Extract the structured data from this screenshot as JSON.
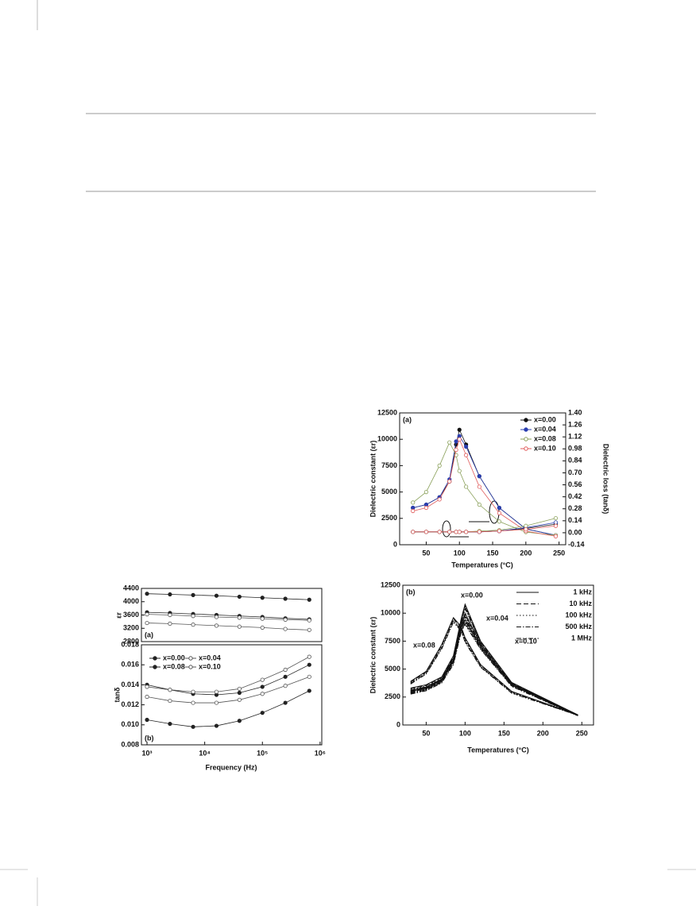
{
  "chart_data": [
    {
      "type": "line",
      "panel_label": "(a)",
      "ylabel": "εr",
      "log_x": true,
      "xlim": [
        800,
        1070000
      ],
      "ylim": [
        2800,
        4400
      ],
      "yticks": [
        2800,
        3200,
        3600,
        4000,
        4400
      ],
      "x": [
        1000,
        2500,
        6300,
        16000,
        40000,
        100000,
        250000,
        650000
      ],
      "series": [
        {
          "color": "#222222",
          "marker": "filled",
          "values": [
            4240,
            4220,
            4200,
            4180,
            4150,
            4120,
            4090,
            4060
          ]
        },
        {
          "color": "#222222",
          "marker": "filled",
          "values": [
            3680,
            3660,
            3630,
            3600,
            3570,
            3540,
            3500,
            3470
          ]
        },
        {
          "color": "#555555",
          "marker": "open",
          "values": [
            3620,
            3600,
            3570,
            3540,
            3520,
            3490,
            3460,
            3440
          ]
        },
        {
          "color": "#555555",
          "marker": "open",
          "values": [
            3360,
            3340,
            3310,
            3280,
            3250,
            3220,
            3180,
            3150
          ]
        }
      ]
    },
    {
      "type": "line",
      "panel_label": "(b)",
      "ylabel": "tanδ",
      "xlabel": "Frequency (Hz)",
      "log_x": true,
      "xlim": [
        800,
        1070000
      ],
      "ylim": [
        0.008,
        0.018
      ],
      "yticks": [
        {
          "value": 0.008,
          "label": "0.008"
        },
        {
          "value": 0.01,
          "label": "0.010"
        },
        {
          "value": 0.012,
          "label": "0.012"
        },
        {
          "value": 0.014,
          "label": "0.014"
        },
        {
          "value": 0.016,
          "label": "0.016"
        },
        {
          "value": 0.018,
          "label": "0.018"
        }
      ],
      "xticks": [
        {
          "value": 1000,
          "label": "10³"
        },
        {
          "value": 10000,
          "label": "10⁴"
        },
        {
          "value": 100000,
          "label": "10⁵"
        },
        {
          "value": 1000000,
          "label": "10⁶"
        }
      ],
      "x": [
        1000,
        2500,
        6300,
        16000,
        40000,
        100000,
        250000,
        650000
      ],
      "series": [
        {
          "name": "x=0.00",
          "color": "#222222",
          "marker": "filled",
          "values": [
            0.014,
            0.0135,
            0.0131,
            0.013,
            0.0132,
            0.0138,
            0.0148,
            0.016
          ]
        },
        {
          "name": "x=0.04",
          "color": "#555555",
          "marker": "open",
          "values": [
            0.0138,
            0.0135,
            0.0133,
            0.0133,
            0.0136,
            0.0145,
            0.0155,
            0.0168
          ]
        },
        {
          "name": "x=0.08",
          "color": "#222222",
          "marker": "filled",
          "values": [
            0.0105,
            0.0101,
            0.0098,
            0.0099,
            0.0104,
            0.0112,
            0.0122,
            0.0134
          ]
        },
        {
          "name": "x=0.10",
          "color": "#555555",
          "marker": "open",
          "values": [
            0.0128,
            0.0124,
            0.0122,
            0.0122,
            0.0125,
            0.0131,
            0.0139,
            0.0148
          ]
        }
      ]
    },
    {
      "type": "line",
      "panel_label": "(a)",
      "ylabel": "Dielectric constant (εr)",
      "y2label": "Dielectric loss (tanδ)",
      "xlabel": "Temperatures (°C)",
      "xlim": [
        10,
        260
      ],
      "ylim": [
        0,
        12500
      ],
      "y2lim": [
        -0.14,
        1.4
      ],
      "xticks": [
        50,
        100,
        150,
        200,
        250
      ],
      "yticks": [
        0,
        2500,
        5000,
        7500,
        10000,
        12500
      ],
      "y2ticks": [
        -0.14,
        {
          "value": 0,
          "label": "0.00"
        },
        0.14,
        0.28,
        0.42,
        0.56,
        {
          "value": 0.7,
          "label": "0.70"
        },
        0.84,
        0.98,
        1.12,
        1.26,
        {
          "value": 1.4,
          "label": "1.40"
        }
      ],
      "x": [
        30,
        50,
        70,
        85,
        95,
        100,
        110,
        130,
        160,
        200,
        245
      ],
      "series": [
        {
          "name": "x=0.00",
          "color": "#111111",
          "marker": "filled",
          "values": [
            3500,
            3800,
            4500,
            6000,
            9500,
            10900,
            9500,
            6500,
            3500,
            1500,
            900
          ]
        },
        {
          "name": "x=0.04",
          "color": "#2b3fb0",
          "marker": "filled",
          "values": [
            3500,
            3800,
            4500,
            6200,
            9800,
            10300,
            9300,
            6500,
            3500,
            1500,
            900
          ]
        },
        {
          "name": "x=0.08",
          "color": "#8aa05a",
          "marker": "open",
          "values": [
            4000,
            5000,
            7500,
            9700,
            8500,
            7000,
            5500,
            3800,
            2200,
            1200,
            900
          ]
        },
        {
          "name": "x=0.10",
          "color": "#e05a5a",
          "marker": "open",
          "values": [
            3200,
            3500,
            4300,
            6000,
            9000,
            10000,
            8500,
            5500,
            3000,
            1300,
            800
          ]
        },
        {
          "axis": "y2",
          "color": "#111111",
          "marker": "open",
          "values": [
            0.01,
            0.01,
            0.01,
            0.01,
            0.01,
            0.01,
            0.01,
            0.01,
            0.02,
            0.05,
            0.1
          ]
        },
        {
          "axis": "y2",
          "color": "#2b3fb0",
          "marker": "open",
          "values": [
            0.01,
            0.01,
            0.01,
            0.01,
            0.01,
            0.01,
            0.01,
            0.01,
            0.02,
            0.06,
            0.12
          ]
        },
        {
          "axis": "y2",
          "color": "#8aa05a",
          "marker": "open",
          "values": [
            0.01,
            0.01,
            0.01,
            0.01,
            0.01,
            0.01,
            0.01,
            0.02,
            0.03,
            0.08,
            0.17
          ]
        },
        {
          "axis": "y2",
          "color": "#e05a5a",
          "marker": "open",
          "values": [
            0.01,
            0.01,
            0.01,
            0.01,
            0.01,
            0.01,
            0.01,
            0.01,
            0.02,
            0.04,
            0.08
          ]
        }
      ]
    },
    {
      "type": "multiline",
      "panel_label": "(b)",
      "ylabel": "Dielectric constant (εr)",
      "xlabel": "Temperatures (°C)",
      "xlim": [
        20,
        265
      ],
      "ylim": [
        0,
        12500
      ],
      "xticks": [
        50,
        100,
        150,
        200,
        250
      ],
      "yticks": [
        0,
        2500,
        5000,
        7500,
        10000,
        12500
      ],
      "annotations": [
        "x=0.00",
        "x=0.04",
        "x=0.08",
        "x=0.10"
      ],
      "x": [
        30,
        50,
        70,
        85,
        95,
        100,
        120,
        160,
        245
      ],
      "series": [
        {
          "name": "1 kHz",
          "dash": "solid",
          "curves": [
            [
              3300,
              3600,
              4300,
              6200,
              9500,
              10800,
              7500,
              3800,
              900
            ],
            [
              3100,
              3400,
              4100,
              6000,
              9000,
              10000,
              7200,
              3700,
              900
            ],
            [
              3900,
              4800,
              7200,
              9600,
              8800,
              7800,
              5400,
              3000,
              900
            ],
            [
              3000,
              3300,
              4000,
              5800,
              8700,
              9400,
              7000,
              3600,
              850
            ]
          ]
        },
        {
          "name": "10 kHz",
          "dash": "dashed",
          "curves": [
            [
              3240,
              3540,
              4240,
              6100,
              9400,
              10700,
              7440,
              3760,
              890
            ],
            [
              3040,
              3340,
              4040,
              5900,
              8900,
              9900,
              7140,
              3660,
              890
            ],
            [
              3840,
              4740,
              7100,
              9500,
              8700,
              7700,
              5340,
              2960,
              890
            ],
            [
              2940,
              3240,
              3940,
              5700,
              8600,
              9300,
              6940,
              3560,
              840
            ]
          ]
        },
        {
          "name": "100 kHz",
          "dash": "dotted",
          "curves": [
            [
              3180,
              3480,
              4180,
              6000,
              9300,
              10600,
              7380,
              3720,
              880
            ],
            [
              2980,
              3280,
              3980,
              5800,
              8800,
              9800,
              7080,
              3620,
              880
            ],
            [
              3780,
              4680,
              7000,
              9400,
              8600,
              7600,
              5280,
              2920,
              880
            ],
            [
              2880,
              3180,
              3880,
              5600,
              8500,
              9200,
              6880,
              3520,
              830
            ]
          ]
        },
        {
          "name": "500 kHz",
          "dash": "dashdot",
          "curves": [
            [
              3120,
              3420,
              4120,
              5900,
              9200,
              10500,
              7320,
              3680,
              870
            ],
            [
              2920,
              3220,
              3920,
              5700,
              8700,
              9700,
              7020,
              3580,
              870
            ],
            [
              3720,
              4620,
              6900,
              9300,
              8500,
              7500,
              5220,
              2880,
              870
            ],
            [
              2820,
              3120,
              3820,
              5500,
              8400,
              9100,
              6820,
              3480,
              820
            ]
          ]
        },
        {
          "name": "1 MHz",
          "dash": "dashdotdot",
          "curves": [
            [
              3060,
              3360,
              4060,
              5800,
              9100,
              10400,
              7260,
              3640,
              860
            ],
            [
              2860,
              3160,
              3860,
              5600,
              8600,
              9600,
              6960,
              3540,
              860
            ],
            [
              3660,
              4560,
              6800,
              9200,
              8400,
              7400,
              5160,
              2840,
              860
            ],
            [
              2760,
              3060,
              3760,
              5400,
              8300,
              9000,
              6760,
              3440,
              810
            ]
          ]
        }
      ]
    }
  ]
}
